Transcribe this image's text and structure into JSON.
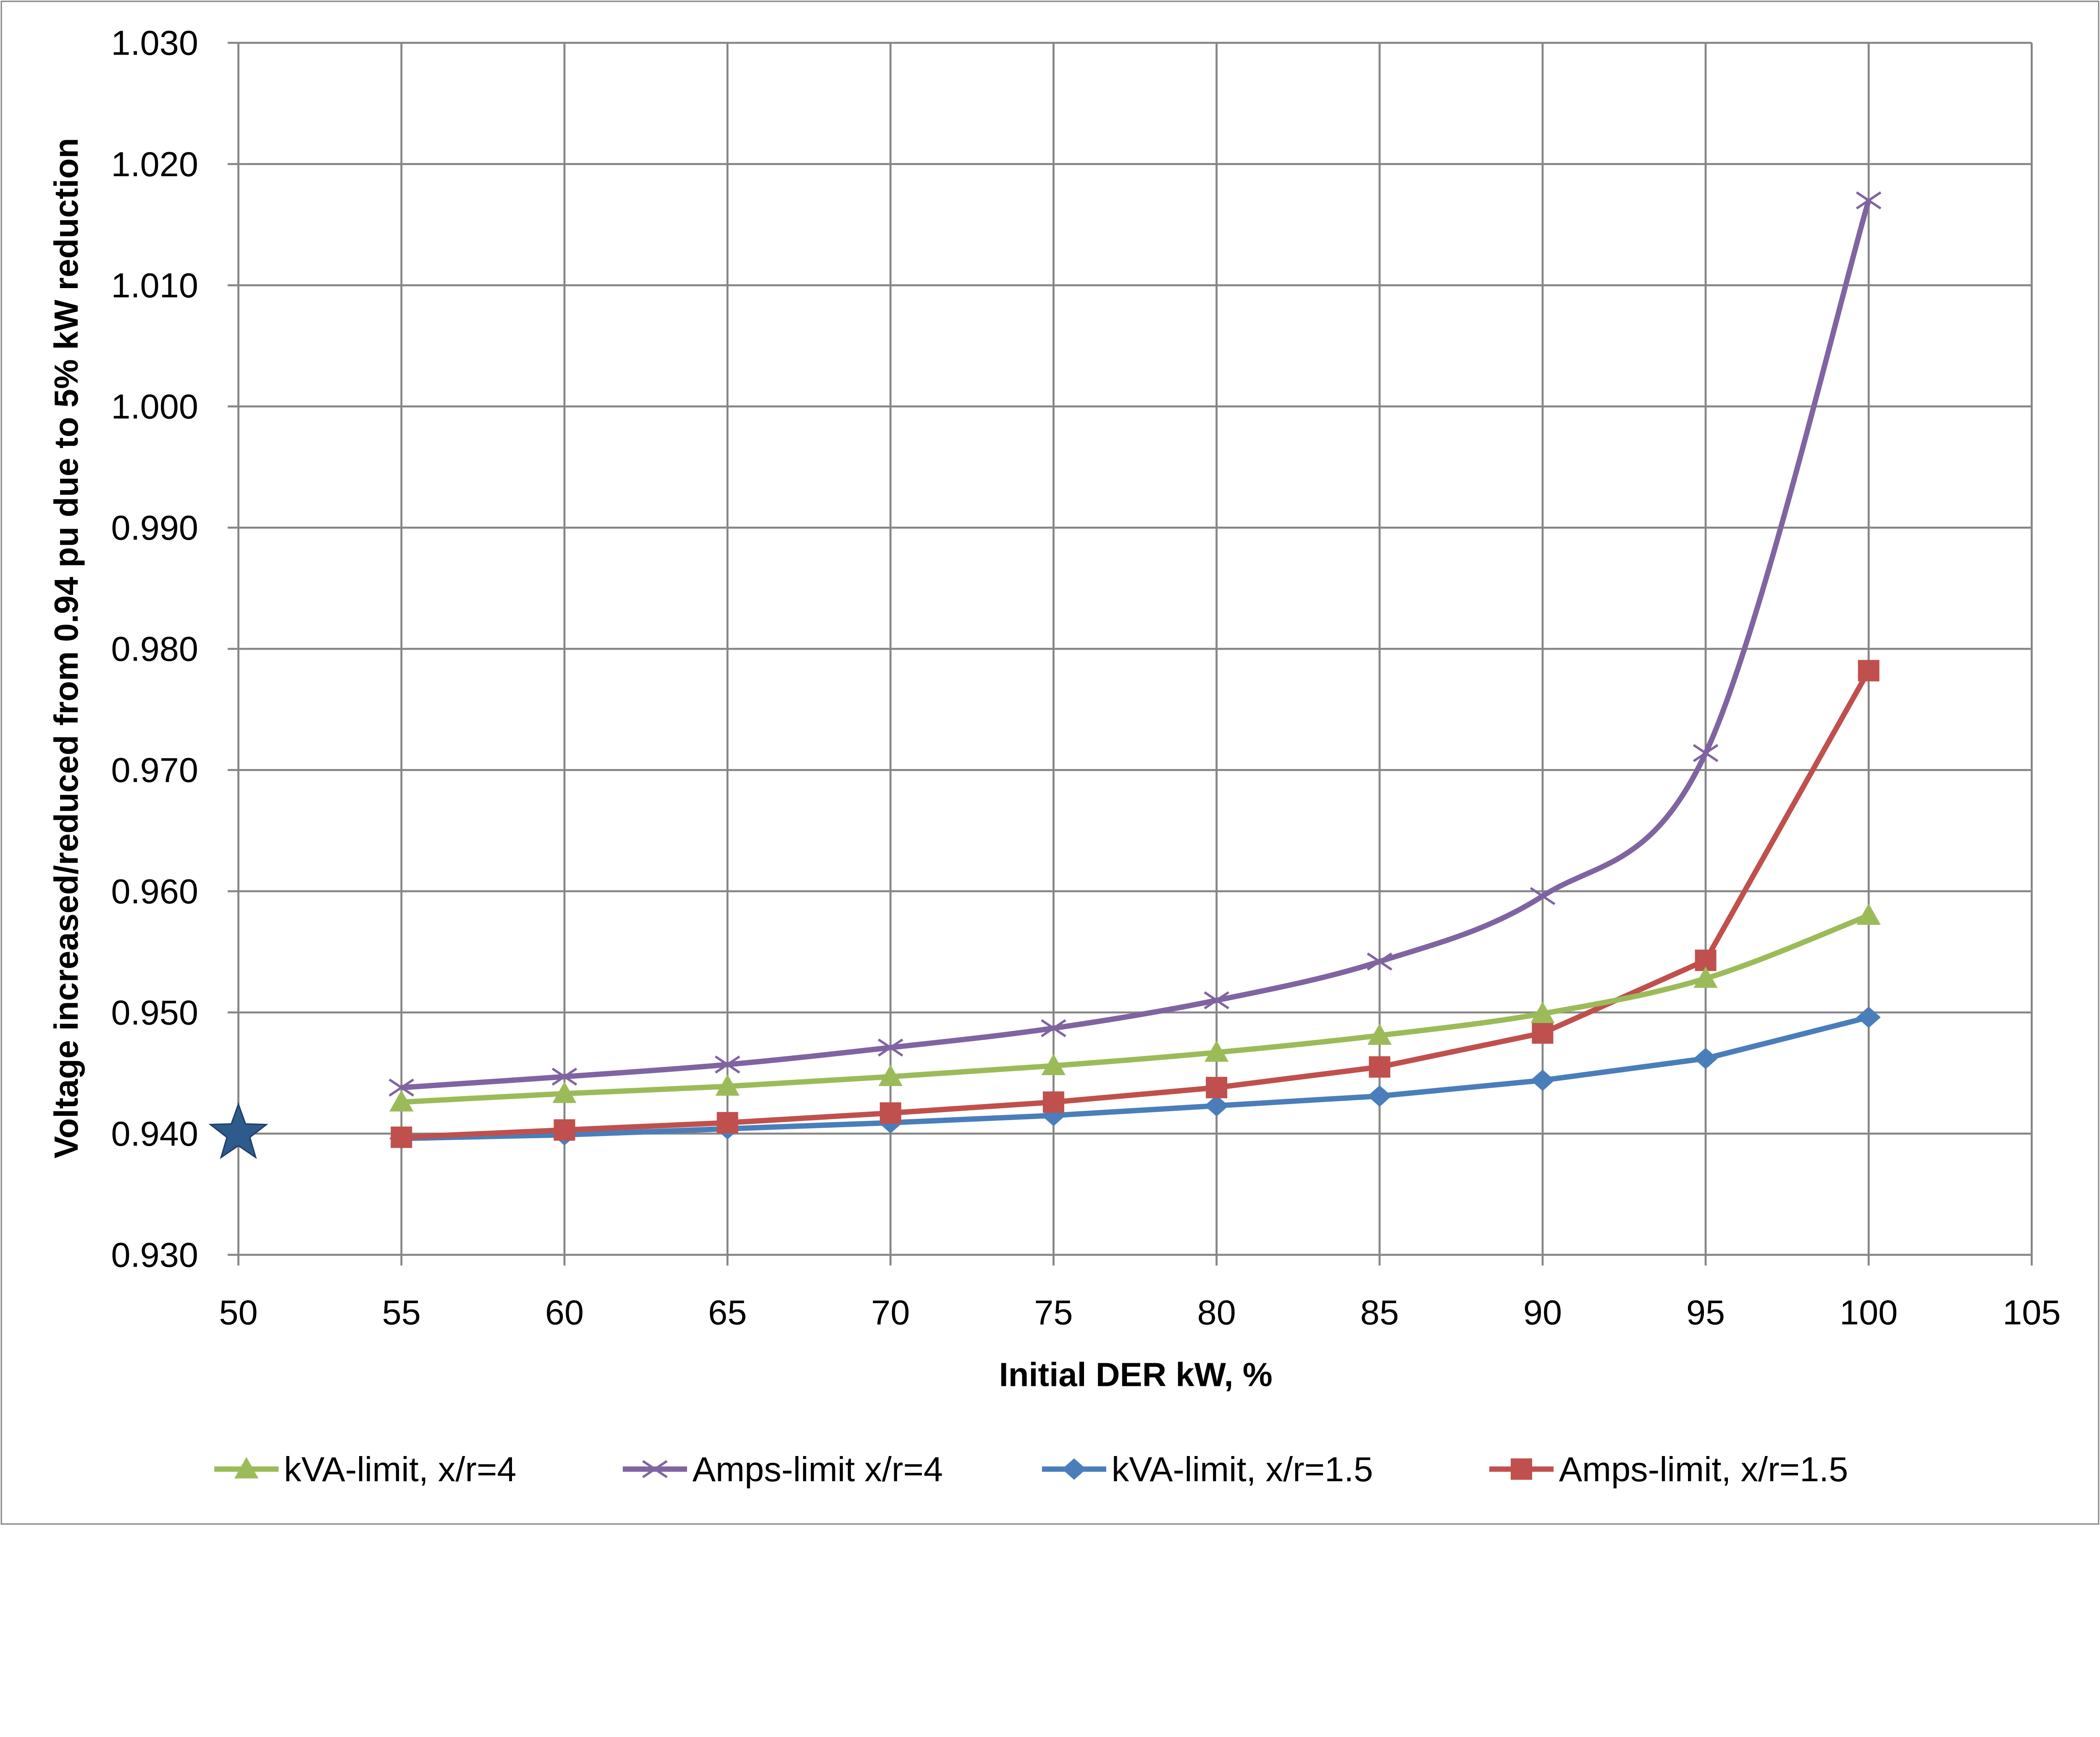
{
  "chart_data": {
    "type": "line",
    "title": "",
    "xlabel": "Initial DER kW, %",
    "ylabel": "Voltage increased/reduced from 0.94 pu due to 5% kW reduction",
    "xlim": [
      50,
      105
    ],
    "ylim": [
      0.93,
      1.03
    ],
    "xticks": [
      "50",
      "55",
      "60",
      "65",
      "70",
      "75",
      "80",
      "85",
      "90",
      "95",
      "100",
      "105"
    ],
    "yticks": [
      "0.930",
      "0.940",
      "0.950",
      "0.960",
      "0.970",
      "0.980",
      "0.990",
      "1.000",
      "1.010",
      "1.020",
      "1.030"
    ],
    "grid": true,
    "legend_position": "bottom",
    "x": [
      55,
      60,
      65,
      70,
      75,
      80,
      85,
      90,
      95,
      100
    ],
    "series": [
      {
        "name": "kVA-limit, x/r=4",
        "color": "#9BBB59",
        "marker": "triangle",
        "smooth": true,
        "values": [
          0.9426,
          0.9433,
          0.9439,
          0.9447,
          0.9456,
          0.9467,
          0.9481,
          0.9499,
          0.9528,
          0.958
        ]
      },
      {
        "name": "Amps-limit x/r=4",
        "color": "#8064A2",
        "marker": "x",
        "smooth": true,
        "values": [
          0.9438,
          0.9447,
          0.9457,
          0.9471,
          0.9487,
          0.951,
          0.9542,
          0.9596,
          0.9714,
          1.017
        ]
      },
      {
        "name": "kVA-limit, x/r=1.5",
        "color": "#4A7EBB",
        "marker": "diamond",
        "smooth": false,
        "values": [
          0.9396,
          0.9399,
          0.9404,
          0.9409,
          0.9415,
          0.9423,
          0.9431,
          0.9444,
          0.9462,
          0.9496
        ]
      },
      {
        "name": "Amps-limit, x/r=1.5",
        "color": "#C0504D",
        "marker": "square",
        "smooth": false,
        "values": [
          0.9397,
          0.9403,
          0.9409,
          0.9417,
          0.9426,
          0.9438,
          0.9455,
          0.9483,
          0.9543,
          0.9782
        ]
      }
    ],
    "annotations": [
      {
        "type": "star-marker",
        "x": 50,
        "y": 0.94,
        "color": "#2E5A8C"
      }
    ]
  }
}
